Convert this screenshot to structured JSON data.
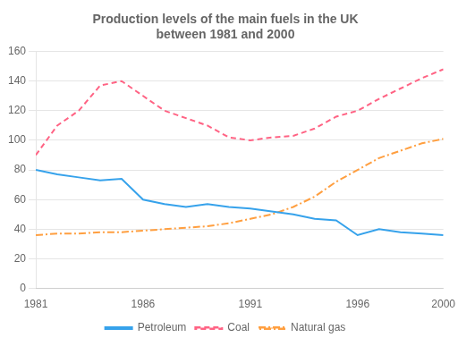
{
  "chart_data": {
    "type": "line",
    "title": "Production levels of the main fuels in the UK\nbetween 1981 and 2000",
    "x": [
      1981,
      1982,
      1983,
      1984,
      1985,
      1986,
      1987,
      1988,
      1989,
      1990,
      1991,
      1992,
      1993,
      1994,
      1995,
      1996,
      1997,
      1998,
      1999,
      2000
    ],
    "series": [
      {
        "name": "Petroleum",
        "line_style": "solid",
        "values": [
          80,
          77,
          75,
          73,
          74,
          60,
          57,
          55,
          57,
          55,
          54,
          52,
          50,
          47,
          46,
          36,
          40,
          38,
          37,
          36
        ]
      },
      {
        "name": "Coal",
        "line_style": "dashed",
        "values": [
          90,
          110,
          120,
          137,
          140,
          130,
          120,
          115,
          110,
          102,
          100,
          102,
          103,
          108,
          116,
          120,
          128,
          135,
          142,
          148
        ]
      },
      {
        "name": "Natural gas",
        "line_style": "dashdot",
        "values": [
          36,
          37,
          37,
          38,
          38,
          39,
          40,
          41,
          42,
          44,
          47,
          50,
          55,
          62,
          72,
          80,
          88,
          93,
          98,
          101
        ]
      }
    ],
    "xlim": [
      1981,
      2000
    ],
    "xticks": [
      1981,
      1986,
      1991,
      1996,
      2000
    ],
    "ylim": [
      0,
      160
    ],
    "yticks": [
      0,
      20,
      40,
      60,
      80,
      100,
      120,
      140,
      160
    ],
    "grid": "y",
    "legend": "bottom"
  }
}
